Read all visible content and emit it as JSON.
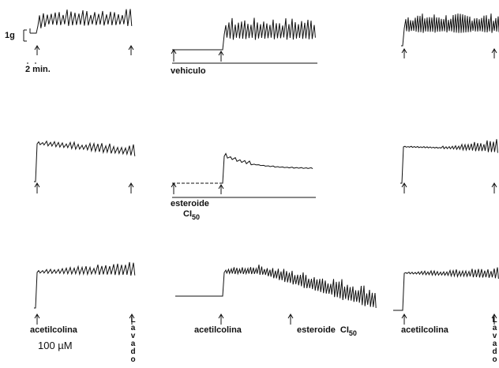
{
  "scale": {
    "force": "1g",
    "time": "2 min."
  },
  "row1": {
    "vehicle": "vehiculo"
  },
  "row2": {
    "steroid": "esteroide",
    "ic": "CI",
    "ic_sub": "50"
  },
  "row3": {
    "agonist": [
      "acetilcolina",
      "acetilcolina",
      "acetilcolina"
    ],
    "concentration": "100 µM",
    "washout": [
      "Lavado",
      "Lavado"
    ],
    "steroid": "esteroide",
    "ic": "CI",
    "ic_sub": "50"
  }
}
